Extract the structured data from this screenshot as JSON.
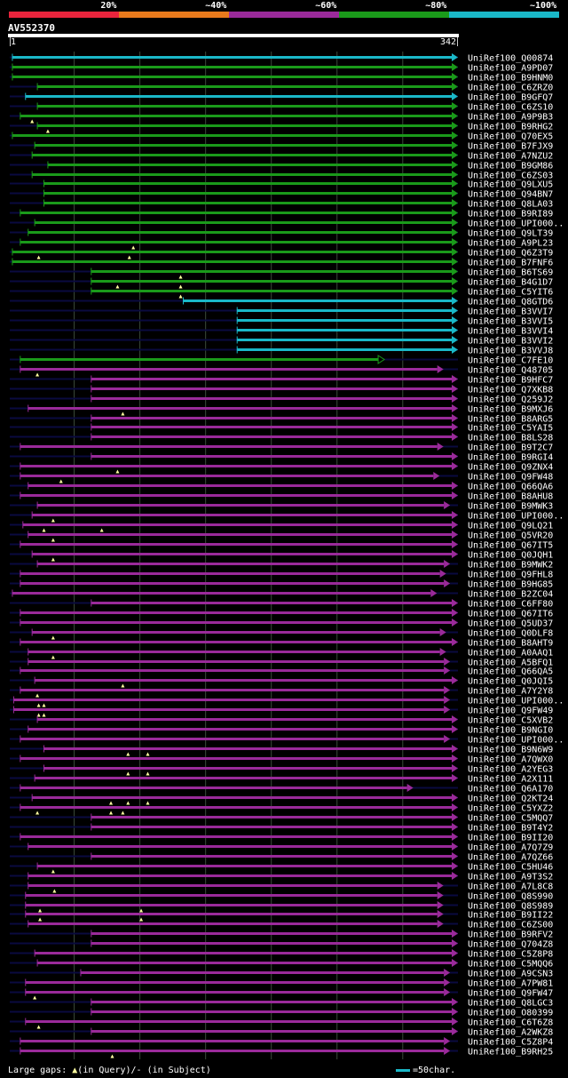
{
  "legend": {
    "segments": [
      {
        "label": "20%",
        "color": "#e8243c"
      },
      {
        "label": "~40%",
        "color": "#e87a1c"
      },
      {
        "label": "~60%",
        "color": "#9a2a9a"
      },
      {
        "label": "~80%",
        "color": "#1a9a1a"
      },
      {
        "label": "~100%",
        "color": "#1ab8c8"
      }
    ]
  },
  "query": {
    "id": "AV552370",
    "start": "1",
    "end": "342"
  },
  "footer": {
    "gaps_label": "Large gaps:",
    "in_query": "(in Query)",
    "in_subject": "/- (in Subject)",
    "scale_label": "=50char."
  },
  "colors": {
    "cyan": "#1ab8c8",
    "green": "#1a9a1a",
    "purple": "#9a2a9a",
    "grid": "#3a4a3a",
    "dark": "#0a0a40",
    "marker": "#ffffa0"
  },
  "chart_data": {
    "type": "alignment-overview",
    "query_length": 342,
    "hits": [
      {
        "name": "UniRef100_Q00874",
        "c": "cyan",
        "s": 3,
        "e": 342,
        "a": 1,
        "g": []
      },
      {
        "name": "UniRef100_A9PD07",
        "c": "green",
        "s": 3,
        "e": 342,
        "a": 1,
        "g": []
      },
      {
        "name": "UniRef100_B9HNM0",
        "c": "green",
        "s": 3,
        "e": 342,
        "a": 1,
        "g": []
      },
      {
        "name": "UniRef100_C6ZRZ0",
        "c": "green",
        "s": 22,
        "e": 342,
        "a": 1,
        "g": []
      },
      {
        "name": "UniRef100_B9GFQ7",
        "c": "cyan",
        "s": 13,
        "e": 342,
        "a": 1,
        "g": []
      },
      {
        "name": "UniRef100_C6ZS10",
        "c": "green",
        "s": 22,
        "e": 342,
        "a": 1,
        "g": []
      },
      {
        "name": "UniRef100_A9P9B3",
        "c": "green",
        "s": 9,
        "e": 342,
        "a": 1,
        "g": [
          18
        ]
      },
      {
        "name": "UniRef100_B9RHG2",
        "c": "green",
        "s": 22,
        "e": 342,
        "a": 1,
        "g": [
          30
        ]
      },
      {
        "name": "UniRef100_Q70EX5",
        "c": "green",
        "s": 3,
        "e": 342,
        "a": 1,
        "g": []
      },
      {
        "name": "UniRef100_B7FJX9",
        "c": "green",
        "s": 20,
        "e": 342,
        "a": 1,
        "g": []
      },
      {
        "name": "UniRef100_A7NZU2",
        "c": "green",
        "s": 18,
        "e": 342,
        "a": 1,
        "g": []
      },
      {
        "name": "UniRef100_B9GM86",
        "c": "green",
        "s": 30,
        "e": 342,
        "a": 1,
        "g": []
      },
      {
        "name": "UniRef100_C6ZS03",
        "c": "green",
        "s": 18,
        "e": 342,
        "a": 1,
        "g": []
      },
      {
        "name": "UniRef100_Q9LXU5",
        "c": "green",
        "s": 27,
        "e": 342,
        "a": 1,
        "g": []
      },
      {
        "name": "UniRef100_Q94BN7",
        "c": "green",
        "s": 27,
        "e": 342,
        "a": 1,
        "g": []
      },
      {
        "name": "UniRef100_Q8LA03",
        "c": "green",
        "s": 27,
        "e": 342,
        "a": 1,
        "g": []
      },
      {
        "name": "UniRef100_B9RI89",
        "c": "green",
        "s": 9,
        "e": 342,
        "a": 1,
        "g": []
      },
      {
        "name": "UniRef100_UPI000..",
        "c": "green",
        "s": 20,
        "e": 342,
        "a": 1,
        "g": []
      },
      {
        "name": "UniRef100_Q9LT39",
        "c": "green",
        "s": 15,
        "e": 342,
        "a": 1,
        "g": []
      },
      {
        "name": "UniRef100_A9PL23",
        "c": "green",
        "s": 9,
        "e": 342,
        "a": 1,
        "g": [
          95
        ]
      },
      {
        "name": "UniRef100_Q6Z3T9",
        "c": "green",
        "s": 3,
        "e": 342,
        "a": 1,
        "g": [
          23,
          92
        ]
      },
      {
        "name": "UniRef100_B7FNF6",
        "c": "green",
        "s": 3,
        "e": 342,
        "a": 1,
        "g": []
      },
      {
        "name": "UniRef100_B6TS69",
        "c": "green",
        "s": 63,
        "e": 342,
        "a": 1,
        "g": [
          131
        ]
      },
      {
        "name": "UniRef100_B4G1D7",
        "c": "green",
        "s": 63,
        "e": 342,
        "a": 1,
        "g": [
          83,
          131
        ]
      },
      {
        "name": "UniRef100_C5YIT6",
        "c": "green",
        "s": 63,
        "e": 342,
        "a": 1,
        "g": [
          131
        ]
      },
      {
        "name": "UniRef100_Q8GTD6",
        "c": "cyan",
        "s": 133,
        "e": 342,
        "a": 1,
        "g": []
      },
      {
        "name": "UniRef100_B3VVI7",
        "c": "cyan",
        "s": 174,
        "e": 342,
        "a": 1,
        "g": []
      },
      {
        "name": "UniRef100_B3VVI5",
        "c": "cyan",
        "s": 174,
        "e": 342,
        "a": 1,
        "g": []
      },
      {
        "name": "UniRef100_B3VVI4",
        "c": "cyan",
        "s": 174,
        "e": 342,
        "a": 1,
        "g": []
      },
      {
        "name": "UniRef100_B3VVI2",
        "c": "cyan",
        "s": 174,
        "e": 342,
        "a": 1,
        "g": []
      },
      {
        "name": "UniRef100_B3VVJ8",
        "c": "cyan",
        "s": 174,
        "e": 342,
        "a": 1,
        "g": []
      },
      {
        "name": "UniRef100_C7FE10",
        "c": "green",
        "s": 9,
        "e": 286,
        "a": 0,
        "g": []
      },
      {
        "name": "UniRef100_Q48705",
        "c": "purple",
        "s": 9,
        "e": 331,
        "a": 1,
        "g": [
          22
        ]
      },
      {
        "name": "UniRef100_B9HFC7",
        "c": "purple",
        "s": 63,
        "e": 342,
        "a": 1,
        "g": []
      },
      {
        "name": "UniRef100_Q7XKB8",
        "c": "purple",
        "s": 63,
        "e": 342,
        "a": 1,
        "g": []
      },
      {
        "name": "UniRef100_Q259J2",
        "c": "purple",
        "s": 63,
        "e": 342,
        "a": 1,
        "g": []
      },
      {
        "name": "UniRef100_B9MXJ6",
        "c": "purple",
        "s": 15,
        "e": 342,
        "a": 1,
        "g": [
          87
        ]
      },
      {
        "name": "UniRef100_B8ARG5",
        "c": "purple",
        "s": 63,
        "e": 342,
        "a": 1,
        "g": []
      },
      {
        "name": "UniRef100_C5YAI5",
        "c": "purple",
        "s": 63,
        "e": 342,
        "a": 1,
        "g": []
      },
      {
        "name": "UniRef100_B8LS28",
        "c": "purple",
        "s": 63,
        "e": 342,
        "a": 1,
        "g": []
      },
      {
        "name": "UniRef100_B9T2C7",
        "c": "purple",
        "s": 9,
        "e": 331,
        "a": 1,
        "g": []
      },
      {
        "name": "UniRef100_B9RGI4",
        "c": "purple",
        "s": 63,
        "e": 342,
        "a": 1,
        "g": []
      },
      {
        "name": "UniRef100_Q9ZNX4",
        "c": "purple",
        "s": 9,
        "e": 342,
        "a": 1,
        "g": [
          83
        ]
      },
      {
        "name": "UniRef100_Q9FW48",
        "c": "purple",
        "s": 9,
        "e": 328,
        "a": 1,
        "g": [
          40
        ]
      },
      {
        "name": "UniRef100_Q66QA6",
        "c": "purple",
        "s": 15,
        "e": 342,
        "a": 1,
        "g": []
      },
      {
        "name": "UniRef100_B8AHU8",
        "c": "purple",
        "s": 9,
        "e": 342,
        "a": 1,
        "g": []
      },
      {
        "name": "UniRef100_B9MWK3",
        "c": "purple",
        "s": 22,
        "e": 336,
        "a": 1,
        "g": []
      },
      {
        "name": "UniRef100_UPI000..",
        "c": "purple",
        "s": 18,
        "e": 342,
        "a": 1,
        "g": [
          34
        ]
      },
      {
        "name": "UniRef100_Q9LQ21",
        "c": "purple",
        "s": 11,
        "e": 342,
        "a": 1,
        "g": [
          27,
          71
        ]
      },
      {
        "name": "UniRef100_Q5VR20",
        "c": "purple",
        "s": 15,
        "e": 342,
        "a": 1,
        "g": [
          34
        ]
      },
      {
        "name": "UniRef100_Q67IT5",
        "c": "purple",
        "s": 9,
        "e": 342,
        "a": 1,
        "g": []
      },
      {
        "name": "UniRef100_Q0JQH1",
        "c": "purple",
        "s": 18,
        "e": 342,
        "a": 1,
        "g": [
          34
        ]
      },
      {
        "name": "UniRef100_B9MWK2",
        "c": "purple",
        "s": 22,
        "e": 336,
        "a": 1,
        "g": []
      },
      {
        "name": "UniRef100_Q9FHL8",
        "c": "purple",
        "s": 9,
        "e": 333,
        "a": 1,
        "g": []
      },
      {
        "name": "UniRef100_B9HG85",
        "c": "purple",
        "s": 9,
        "e": 336,
        "a": 1,
        "g": []
      },
      {
        "name": "UniRef100_B2ZC04",
        "c": "purple",
        "s": 3,
        "e": 326,
        "a": 1,
        "g": []
      },
      {
        "name": "UniRef100_C6FF80",
        "c": "purple",
        "s": 63,
        "e": 342,
        "a": 1,
        "g": []
      },
      {
        "name": "UniRef100_Q67IT6",
        "c": "purple",
        "s": 9,
        "e": 342,
        "a": 1,
        "g": []
      },
      {
        "name": "UniRef100_Q5UD37",
        "c": "purple",
        "s": 9,
        "e": 342,
        "a": 1,
        "g": []
      },
      {
        "name": "UniRef100_Q0DLF8",
        "c": "purple",
        "s": 18,
        "e": 333,
        "a": 1,
        "g": [
          34
        ]
      },
      {
        "name": "UniRef100_B8AHT9",
        "c": "purple",
        "s": 9,
        "e": 342,
        "a": 1,
        "g": []
      },
      {
        "name": "UniRef100_A0AAQ1",
        "c": "purple",
        "s": 15,
        "e": 333,
        "a": 1,
        "g": [
          34
        ]
      },
      {
        "name": "UniRef100_A5BFQ1",
        "c": "purple",
        "s": 15,
        "e": 336,
        "a": 1,
        "g": []
      },
      {
        "name": "UniRef100_Q66QA5",
        "c": "purple",
        "s": 9,
        "e": 336,
        "a": 1,
        "g": []
      },
      {
        "name": "UniRef100_Q0JQI5",
        "c": "purple",
        "s": 20,
        "e": 342,
        "a": 1,
        "g": [
          87
        ]
      },
      {
        "name": "UniRef100_A7Y2Y8",
        "c": "purple",
        "s": 9,
        "e": 336,
        "a": 1,
        "g": [
          22
        ]
      },
      {
        "name": "UniRef100_UPI000..",
        "c": "purple",
        "s": 4,
        "e": 336,
        "a": 1,
        "g": [
          23,
          27
        ]
      },
      {
        "name": "UniRef100_Q9FW49",
        "c": "purple",
        "s": 4,
        "e": 336,
        "a": 1,
        "g": [
          23,
          27
        ]
      },
      {
        "name": "UniRef100_C5XVB2",
        "c": "purple",
        "s": 22,
        "e": 342,
        "a": 1,
        "g": []
      },
      {
        "name": "UniRef100_B9NGI0",
        "c": "purple",
        "s": 15,
        "e": 342,
        "a": 1,
        "g": []
      },
      {
        "name": "UniRef100_UPI000..",
        "c": "purple",
        "s": 9,
        "e": 336,
        "a": 1,
        "g": []
      },
      {
        "name": "UniRef100_B9N6W9",
        "c": "purple",
        "s": 27,
        "e": 342,
        "a": 1,
        "g": [
          91,
          106
        ]
      },
      {
        "name": "UniRef100_A7QWX0",
        "c": "purple",
        "s": 9,
        "e": 342,
        "a": 1,
        "g": []
      },
      {
        "name": "UniRef100_A2YEG3",
        "c": "purple",
        "s": 27,
        "e": 342,
        "a": 1,
        "g": [
          91,
          106
        ]
      },
      {
        "name": "UniRef100_A2X111",
        "c": "purple",
        "s": 20,
        "e": 342,
        "a": 1,
        "g": []
      },
      {
        "name": "UniRef100_Q6A170",
        "c": "purple",
        "s": 9,
        "e": 308,
        "a": 1,
        "g": []
      },
      {
        "name": "UniRef100_Q2KT24",
        "c": "purple",
        "s": 18,
        "e": 342,
        "a": 1,
        "g": [
          78,
          91,
          106
        ]
      },
      {
        "name": "UniRef100_C5YXZ2",
        "c": "purple",
        "s": 9,
        "e": 342,
        "a": 1,
        "g": [
          22,
          78,
          87
        ]
      },
      {
        "name": "UniRef100_C5MQQ7",
        "c": "purple",
        "s": 63,
        "e": 342,
        "a": 1,
        "g": []
      },
      {
        "name": "UniRef100_B9T4Y2",
        "c": "purple",
        "s": 63,
        "e": 342,
        "a": 1,
        "g": []
      },
      {
        "name": "UniRef100_B9II20",
        "c": "purple",
        "s": 9,
        "e": 342,
        "a": 1,
        "g": []
      },
      {
        "name": "UniRef100_A7Q7Z9",
        "c": "purple",
        "s": 15,
        "e": 342,
        "a": 1,
        "g": []
      },
      {
        "name": "UniRef100_A7QZ66",
        "c": "purple",
        "s": 63,
        "e": 342,
        "a": 1,
        "g": []
      },
      {
        "name": "UniRef100_C5HU46",
        "c": "purple",
        "s": 22,
        "e": 342,
        "a": 1,
        "g": [
          34
        ]
      },
      {
        "name": "UniRef100_A9T3S2",
        "c": "purple",
        "s": 15,
        "e": 342,
        "a": 1,
        "g": []
      },
      {
        "name": "UniRef100_A7L8C8",
        "c": "purple",
        "s": 15,
        "e": 331,
        "a": 1,
        "g": [
          35
        ]
      },
      {
        "name": "UniRef100_Q8S990",
        "c": "purple",
        "s": 13,
        "e": 331,
        "a": 1,
        "g": []
      },
      {
        "name": "UniRef100_Q8S989",
        "c": "purple",
        "s": 13,
        "e": 331,
        "a": 1,
        "g": [
          24,
          101
        ]
      },
      {
        "name": "UniRef100_B9II22",
        "c": "purple",
        "s": 13,
        "e": 331,
        "a": 1,
        "g": [
          24,
          101
        ]
      },
      {
        "name": "UniRef100_C6ZS00",
        "c": "purple",
        "s": 15,
        "e": 331,
        "a": 1,
        "g": []
      },
      {
        "name": "UniRef100_B9RFV2",
        "c": "purple",
        "s": 63,
        "e": 342,
        "a": 1,
        "g": []
      },
      {
        "name": "UniRef100_Q704Z8",
        "c": "purple",
        "s": 63,
        "e": 342,
        "a": 1,
        "g": []
      },
      {
        "name": "UniRef100_C5Z8P8",
        "c": "purple",
        "s": 20,
        "e": 342,
        "a": 1,
        "g": []
      },
      {
        "name": "UniRef100_C5MQQ6",
        "c": "purple",
        "s": 22,
        "e": 342,
        "a": 1,
        "g": []
      },
      {
        "name": "UniRef100_A9CSN3",
        "c": "purple",
        "s": 55,
        "e": 336,
        "a": 1,
        "g": []
      },
      {
        "name": "UniRef100_A7PW81",
        "c": "purple",
        "s": 13,
        "e": 336,
        "a": 1,
        "g": []
      },
      {
        "name": "UniRef100_Q9FW47",
        "c": "purple",
        "s": 13,
        "e": 336,
        "a": 1,
        "g": [
          20
        ]
      },
      {
        "name": "UniRef100_Q8LGC3",
        "c": "purple",
        "s": 63,
        "e": 342,
        "a": 1,
        "g": []
      },
      {
        "name": "UniRef100_O80399",
        "c": "purple",
        "s": 63,
        "e": 342,
        "a": 1,
        "g": []
      },
      {
        "name": "UniRef100_C6T6Z8",
        "c": "purple",
        "s": 13,
        "e": 342,
        "a": 1,
        "g": [
          23
        ]
      },
      {
        "name": "UniRef100_A2WKZ8",
        "c": "purple",
        "s": 63,
        "e": 342,
        "a": 1,
        "g": []
      },
      {
        "name": "UniRef100_C5Z8P4",
        "c": "purple",
        "s": 9,
        "e": 336,
        "a": 1,
        "g": []
      },
      {
        "name": "UniRef100_B9RH25",
        "c": "purple",
        "s": 9,
        "e": 336,
        "a": 1,
        "g": [
          79
        ]
      }
    ]
  }
}
